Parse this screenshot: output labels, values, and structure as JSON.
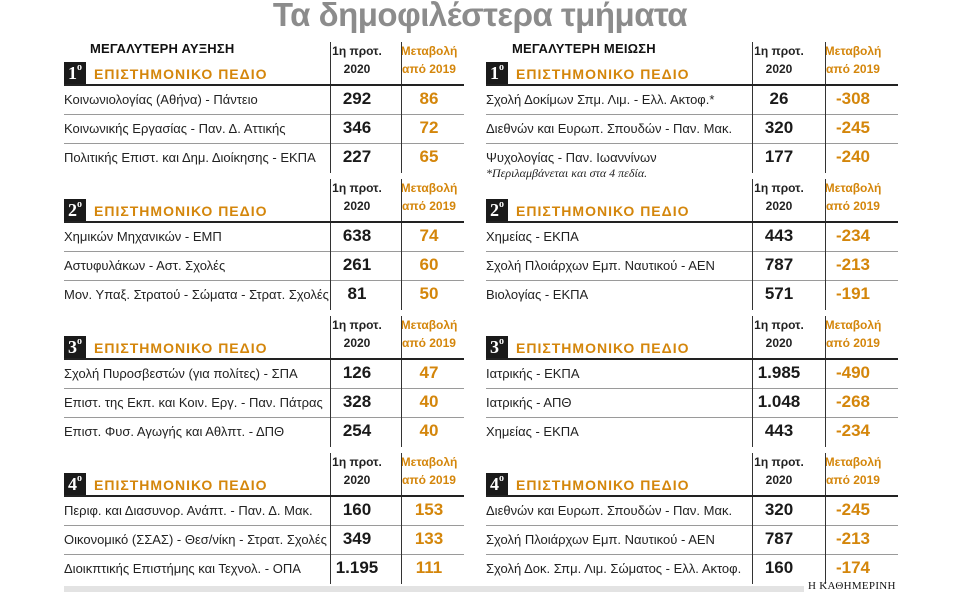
{
  "title": "Τα δημοφιλέστερα τμήματα",
  "colors": {
    "accent": "#d4860b",
    "title_grey": "#8c8c8c",
    "badge_bg": "#1a1a1a"
  },
  "headers": {
    "num": [
      "1η προτ.",
      "2020"
    ],
    "chg": [
      "Μεταβολή",
      "από 2019"
    ]
  },
  "left": {
    "heading": "ΜΕΓΑΛΥΤΕΡΗ ΑΥΞΗΣΗ",
    "sections": [
      {
        "badge": "1",
        "sup": "ο",
        "field": "ΕΠΙΣΤΗΜΟΝΙΚΟ ΠΕΔΙΟ",
        "rows": [
          {
            "name": "Κοινωνιολογίας (Αθήνα) - Πάντειο",
            "num": "292",
            "chg": "86"
          },
          {
            "name": "Κοινωνικής Εργασίας - Παν. Δ. Αττικής",
            "num": "346",
            "chg": "72"
          },
          {
            "name": "Πολιτικής Επιστ. και Δημ. Διοίκησης - ΕΚΠΑ",
            "num": "227",
            "chg": "65"
          }
        ]
      },
      {
        "badge": "2",
        "sup": "ο",
        "field": "ΕΠΙΣΤΗΜΟΝΙΚΟ ΠΕΔΙΟ",
        "rows": [
          {
            "name": "Χημικών Μηχανικών - ΕΜΠ",
            "num": "638",
            "chg": "74"
          },
          {
            "name": "Αστυφυλάκων - Αστ. Σχολές",
            "num": "261",
            "chg": "60"
          },
          {
            "name": "Μον. Υπαξ. Στρατού - Σώματα - Στρατ. Σχολές",
            "num": "81",
            "chg": "50"
          }
        ]
      },
      {
        "badge": "3",
        "sup": "ο",
        "field": "ΕΠΙΣΤΗΜΟΝΙΚΟ ΠΕΔΙΟ",
        "rows": [
          {
            "name": "Σχολή Πυροσβεστών (για πολίτες) - ΣΠΑ",
            "num": "126",
            "chg": "47"
          },
          {
            "name": "Επιστ. της Εκπ. και Κοιν. Εργ. - Παν. Πάτρας",
            "num": "328",
            "chg": "40"
          },
          {
            "name": "Επιστ. Φυσ. Αγωγής και Αθλπτ. - ΔΠΘ",
            "num": "254",
            "chg": "40"
          }
        ]
      },
      {
        "badge": "4",
        "sup": "ο",
        "field": "ΕΠΙΣΤΗΜΟΝΙΚΟ ΠΕΔΙΟ",
        "rows": [
          {
            "name": "Περιφ. και Διασυνορ. Ανάπτ. - Παν. Δ. Μακ.",
            "num": "160",
            "chg": "153"
          },
          {
            "name": "Οικονομικό (ΣΣΑΣ) - Θεσ/νίκη - Στρατ. Σχολές",
            "num": "349",
            "chg": "133"
          },
          {
            "name": "Διοικπτικής Επιστήμης και Τεχνολ. - ΟΠΑ",
            "num": "1.195",
            "chg": "111"
          }
        ]
      }
    ]
  },
  "right": {
    "heading": "ΜΕΓΑΛΥΤΕΡΗ ΜΕΙΩΣΗ",
    "footnote": "*Περιλαμβάνεται και στα 4 πεδία.",
    "sections": [
      {
        "badge": "1",
        "sup": "ο",
        "field": "ΕΠΙΣΤΗΜΟΝΙΚΟ ΠΕΔΙΟ",
        "rows": [
          {
            "name": "Σχολή Δοκίμων Σπμ. Λιμ. - Ελλ. Ακτοφ.*",
            "num": "26",
            "chg": "-308"
          },
          {
            "name": "Διεθνών και Ευρωπ. Σπουδών - Παν. Μακ.",
            "num": "320",
            "chg": "-245"
          },
          {
            "name": "Ψυχολογίας - Παν. Ιωαννίνων",
            "num": "177",
            "chg": "-240"
          }
        ]
      },
      {
        "badge": "2",
        "sup": "ο",
        "field": "ΕΠΙΣΤΗΜΟΝΙΚΟ ΠΕΔΙΟ",
        "rows": [
          {
            "name": "Χημείας - ΕΚΠΑ",
            "num": "443",
            "chg": "-234"
          },
          {
            "name": "Σχολή Πλοιάρχων Εμπ. Ναυτικού - ΑΕΝ",
            "num": "787",
            "chg": "-213"
          },
          {
            "name": "Βιολογίας - ΕΚΠΑ",
            "num": "571",
            "chg": "-191"
          }
        ]
      },
      {
        "badge": "3",
        "sup": "ο",
        "field": "ΕΠΙΣΤΗΜΟΝΙΚΟ ΠΕΔΙΟ",
        "rows": [
          {
            "name": "Ιατρικής - ΕΚΠΑ",
            "num": "1.985",
            "chg": "-490"
          },
          {
            "name": "Ιατρικής - ΑΠΘ",
            "num": "1.048",
            "chg": "-268"
          },
          {
            "name": "Χημείας - ΕΚΠΑ",
            "num": "443",
            "chg": "-234"
          }
        ]
      },
      {
        "badge": "4",
        "sup": "ο",
        "field": "ΕΠΙΣΤΗΜΟΝΙΚΟ ΠΕΔΙΟ",
        "rows": [
          {
            "name": "Διεθνών και Ευρωπ. Σπουδών - Παν. Μακ.",
            "num": "320",
            "chg": "-245"
          },
          {
            "name": "Σχολή Πλοιάρχων Εμπ. Ναυτικού - ΑΕΝ",
            "num": "787",
            "chg": "-213"
          },
          {
            "name": "Σχολή Δοκ. Σπμ. Λιμ. Σώματος - Ελλ. Ακτοφ.",
            "num": "160",
            "chg": "-174"
          }
        ]
      }
    ]
  },
  "credit": "Η ΚΑΘΗΜΕΡΙΝΗ"
}
